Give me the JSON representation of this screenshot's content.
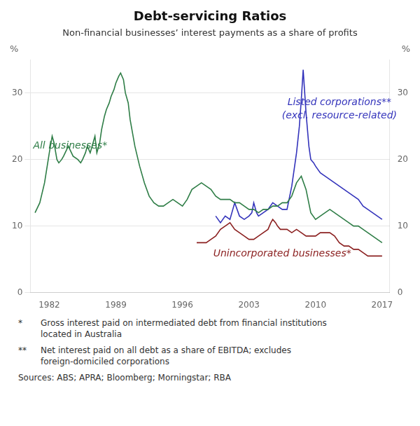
{
  "chart_data": {
    "type": "line",
    "title": "Debt-servicing Ratios",
    "subtitle": "Non-financial businesses’ interest payments as a share of profits",
    "ylabel": "%",
    "y2label": "%",
    "xlim": [
      1980.0,
      2017.8
    ],
    "xticks": [
      1982,
      1989,
      1996,
      2003,
      2010,
      2017
    ],
    "ylim": [
      0,
      35
    ],
    "yticks": [
      0,
      10,
      20,
      30
    ],
    "y2lim": [
      0,
      35
    ],
    "y2ticks": [
      0,
      10,
      20,
      30
    ],
    "grid": true,
    "series": [
      {
        "name": "All businesses*",
        "color": "#2e7d46",
        "x": [
          1980.5,
          1981.0,
          1981.5,
          1982.0,
          1982.3,
          1982.5,
          1982.8,
          1983.0,
          1983.3,
          1983.5,
          1984.0,
          1984.5,
          1985.0,
          1985.3,
          1985.5,
          1985.8,
          1986.0,
          1986.3,
          1986.5,
          1986.8,
          1987.0,
          1987.3,
          1987.5,
          1987.8,
          1988.0,
          1988.3,
          1988.5,
          1988.8,
          1989.0,
          1989.3,
          1989.5,
          1989.8,
          1990.0,
          1990.3,
          1990.5,
          1991.0,
          1991.5,
          1992.0,
          1992.5,
          1993.0,
          1993.5,
          1994.0,
          1994.5,
          1995.0,
          1995.5,
          1996.0,
          1996.5,
          1997.0,
          1997.5,
          1998.0,
          1998.5,
          1999.0,
          1999.5,
          2000.0,
          2000.5,
          2001.0,
          2001.5,
          2002.0,
          2002.5,
          2003.0,
          2003.5,
          2004.0,
          2004.5,
          2005.0,
          2005.5,
          2006.0,
          2006.5,
          2007.0,
          2007.5,
          2008.0,
          2008.5,
          2009.0,
          2009.5,
          2010.0,
          2010.5,
          2011.0,
          2011.5,
          2012.0,
          2012.5,
          2013.0,
          2013.5,
          2014.0,
          2014.5,
          2015.0,
          2015.5,
          2016.0,
          2016.5,
          2017.0
        ],
        "values": [
          12.0,
          13.5,
          16.5,
          21.0,
          23.5,
          22.5,
          20.0,
          19.5,
          20.0,
          20.5,
          22.0,
          20.5,
          20.0,
          19.5,
          20.0,
          21.0,
          22.0,
          21.0,
          22.0,
          23.5,
          21.0,
          22.5,
          24.5,
          26.5,
          27.5,
          28.5,
          29.5,
          30.5,
          31.5,
          32.5,
          33.0,
          32.0,
          30.0,
          28.5,
          26.0,
          22.0,
          19.0,
          16.5,
          14.5,
          13.5,
          13.0,
          13.0,
          13.5,
          14.0,
          13.5,
          13.0,
          14.0,
          15.5,
          16.0,
          16.5,
          16.0,
          15.5,
          14.5,
          14.0,
          14.0,
          14.0,
          13.5,
          13.5,
          13.0,
          12.5,
          12.5,
          12.0,
          12.5,
          12.5,
          13.0,
          13.0,
          13.5,
          13.5,
          14.5,
          16.5,
          17.5,
          15.5,
          12.0,
          11.0,
          11.5,
          12.0,
          12.5,
          12.0,
          11.5,
          11.0,
          10.5,
          10.0,
          10.0,
          9.5,
          9.0,
          8.5,
          8.0,
          7.5
        ]
      },
      {
        "name": "Listed corporations**\n(excl. resource-related)",
        "color": "#3333bb",
        "x": [
          1999.5,
          2000.0,
          2000.5,
          2001.0,
          2001.5,
          2002.0,
          2002.5,
          2003.0,
          2003.3,
          2003.5,
          2003.8,
          2004.0,
          2004.5,
          2005.0,
          2005.5,
          2006.0,
          2006.5,
          2007.0,
          2007.5,
          2008.0,
          2008.3,
          2008.5,
          2008.7,
          2009.0,
          2009.3,
          2009.5,
          2009.8,
          2010.0,
          2010.5,
          2011.0,
          2011.5,
          2012.0,
          2012.5,
          2013.0,
          2013.5,
          2014.0,
          2014.5,
          2015.0,
          2015.5,
          2016.0,
          2016.5,
          2017.0
        ],
        "values": [
          11.5,
          10.5,
          11.5,
          11.0,
          13.5,
          11.5,
          11.0,
          11.5,
          12.0,
          13.5,
          12.0,
          11.5,
          12.0,
          12.5,
          13.5,
          13.0,
          12.5,
          12.5,
          16.0,
          21.0,
          25.0,
          29.0,
          33.5,
          27.0,
          22.0,
          20.0,
          19.5,
          19.0,
          18.0,
          17.5,
          17.0,
          16.5,
          16.0,
          15.5,
          15.0,
          14.5,
          14.0,
          13.0,
          12.5,
          12.0,
          11.5,
          11.0
        ]
      },
      {
        "name": "Unincorporated businesses*",
        "color": "#8b2020",
        "x": [
          1997.5,
          1998.0,
          1998.5,
          1999.0,
          1999.5,
          2000.0,
          2000.5,
          2001.0,
          2001.5,
          2002.0,
          2002.5,
          2003.0,
          2003.5,
          2004.0,
          2004.5,
          2005.0,
          2005.3,
          2005.5,
          2005.8,
          2006.0,
          2006.3,
          2006.5,
          2007.0,
          2007.5,
          2008.0,
          2008.5,
          2009.0,
          2009.3,
          2009.5,
          2010.0,
          2010.5,
          2011.0,
          2011.5,
          2012.0,
          2012.5,
          2013.0,
          2013.5,
          2014.0,
          2014.5,
          2015.0,
          2015.5,
          2016.0,
          2016.5,
          2017.0
        ],
        "values": [
          7.5,
          7.5,
          7.5,
          8.0,
          8.5,
          9.5,
          10.0,
          10.5,
          9.5,
          9.0,
          8.5,
          8.0,
          8.0,
          8.5,
          9.0,
          9.5,
          10.5,
          11.0,
          10.5,
          10.0,
          9.5,
          9.5,
          9.5,
          9.0,
          9.5,
          9.0,
          8.5,
          8.5,
          8.5,
          8.5,
          9.0,
          9.0,
          9.0,
          8.5,
          7.5,
          7.0,
          7.0,
          6.5,
          6.5,
          6.0,
          5.5,
          5.5,
          5.5,
          5.5
        ]
      }
    ],
    "footnotes": [
      {
        "mark": "*",
        "text": "Gross interest paid on intermediated debt from financial institutions\nlocated in Australia"
      },
      {
        "mark": "**",
        "text": "Net interest paid on all debt as a share of EBITDA; excludes\nforeign-domiciled corporations"
      }
    ],
    "source": "Sources: ABS; APRA; Bloomberg; Morningstar; RBA"
  }
}
